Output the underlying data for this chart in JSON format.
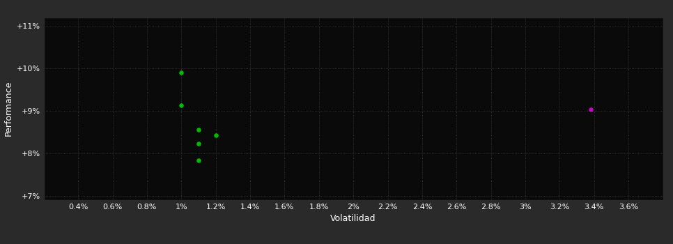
{
  "background_color": "#2a2a2a",
  "plot_bg_color": "#0a0a0a",
  "grid_color": "#3a3a3a",
  "text_color": "#ffffff",
  "xlabel": "Volatilidad",
  "ylabel": "Performance",
  "xlim": [
    0.002,
    0.038
  ],
  "ylim": [
    0.069,
    0.112
  ],
  "xtick_values": [
    0.004,
    0.006,
    0.008,
    0.01,
    0.012,
    0.014,
    0.016,
    0.018,
    0.02,
    0.022,
    0.024,
    0.026,
    0.028,
    0.03,
    0.032,
    0.034,
    0.036
  ],
  "xtick_labels": [
    "0.4%",
    "0.6%",
    "0.8%",
    "1%",
    "1.2%",
    "1.4%",
    "1.6%",
    "1.8%",
    "2%",
    "2.2%",
    "2.4%",
    "2.6%",
    "2.8%",
    "3%",
    "3.2%",
    "3.4%",
    "3.6%"
  ],
  "ytick_values": [
    0.07,
    0.08,
    0.09,
    0.1,
    0.11
  ],
  "ytick_labels": [
    "+7%",
    "+8%",
    "+9%",
    "+10%",
    "+11%"
  ],
  "green_dots": [
    [
      0.01,
      0.099
    ],
    [
      0.01,
      0.0913
    ],
    [
      0.011,
      0.0855
    ],
    [
      0.012,
      0.0842
    ],
    [
      0.011,
      0.0822
    ],
    [
      0.011,
      0.0783
    ]
  ],
  "magenta_point": [
    0.0338,
    0.0903
  ],
  "dot_size": 22,
  "green_color": "#00bb00",
  "magenta_color": "#cc00cc",
  "tick_fontsize": 8,
  "label_fontsize": 9
}
